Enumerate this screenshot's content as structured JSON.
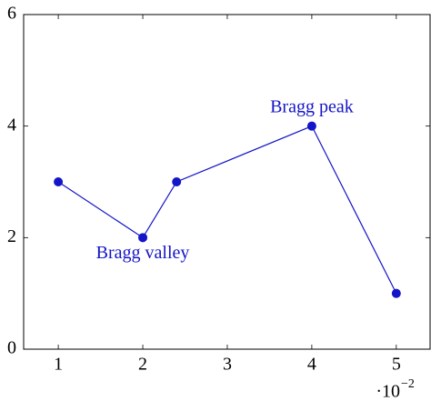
{
  "chart_data": {
    "type": "line",
    "x": [
      0.01,
      0.02,
      0.024,
      0.04,
      0.05
    ],
    "series": [
      {
        "name": null,
        "color": "#1414c8",
        "values": [
          3,
          2,
          3,
          4,
          1
        ]
      }
    ],
    "xlim": [
      0.0059,
      0.054
    ],
    "ylim": [
      0,
      6
    ],
    "xticks": [
      {
        "value": 0.01,
        "label": "1"
      },
      {
        "value": 0.02,
        "label": "2"
      },
      {
        "value": 0.03,
        "label": "3"
      },
      {
        "value": 0.04,
        "label": "4"
      },
      {
        "value": 0.05,
        "label": "5"
      }
    ],
    "yticks": [
      0,
      2,
      4,
      6
    ],
    "x_scale_base": "·10",
    "x_scale_exponent": "−2",
    "annotations": [
      {
        "text": "Bragg valley",
        "x": 0.02,
        "y": 2,
        "position": "below"
      },
      {
        "text": "Bragg peak",
        "x": 0.04,
        "y": 4,
        "position": "above"
      }
    ]
  }
}
